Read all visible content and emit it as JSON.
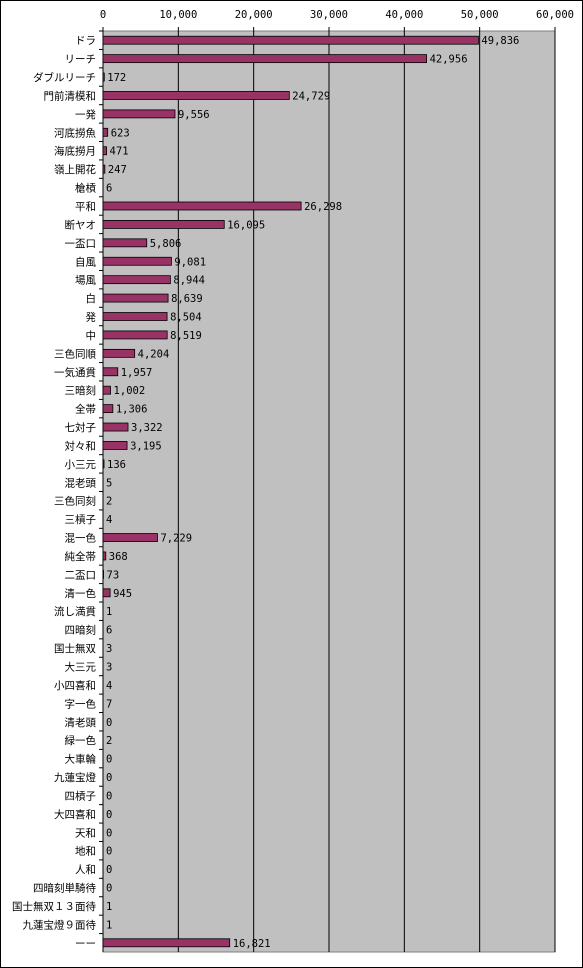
{
  "chart_data": {
    "type": "bar",
    "orientation": "horizontal",
    "categories": [
      "ドラ",
      "リーチ",
      "ダブルリーチ",
      "門前清模和",
      "一発",
      "河底撈魚",
      "海底撈月",
      "嶺上開花",
      "槍槓",
      "平和",
      "断ヤオ",
      "一盃口",
      "自風",
      "場風",
      "白",
      "発",
      "中",
      "三色同順",
      "一気通貫",
      "三暗刻",
      "全帯",
      "七対子",
      "対々和",
      "小三元",
      "混老頭",
      "三色同刻",
      "三槓子",
      "混一色",
      "純全帯",
      "二盃口",
      "清一色",
      "流し満貫",
      "四暗刻",
      "国士無双",
      "大三元",
      "小四喜和",
      "字一色",
      "清老頭",
      "緑一色",
      "大車輪",
      "九蓮宝燈",
      "四槓子",
      "大四喜和",
      "天和",
      "地和",
      "人和",
      "四暗刻単騎待",
      "国士無双１３面待",
      "九蓮宝燈９面待",
      "ーー"
    ],
    "values": [
      49836,
      42956,
      172,
      24729,
      9556,
      623,
      471,
      247,
      6,
      26298,
      16095,
      5806,
      9081,
      8944,
      8639,
      8504,
      8519,
      4204,
      1957,
      1002,
      1306,
      3322,
      3195,
      136,
      5,
      2,
      4,
      7229,
      368,
      73,
      945,
      1,
      6,
      3,
      3,
      4,
      7,
      0,
      2,
      0,
      0,
      0,
      0,
      0,
      0,
      0,
      0,
      1,
      1,
      16821
    ],
    "value_labels": [
      "49,836",
      "42,956",
      "172",
      "24,729",
      "9,556",
      "623",
      "471",
      "247",
      "6",
      "26,298",
      "16,095",
      "5,806",
      "9,081",
      "8,944",
      "8,639",
      "8,504",
      "8,519",
      "4,204",
      "1,957",
      "1,002",
      "1,306",
      "3,322",
      "3,195",
      "136",
      "5",
      "2",
      "4",
      "7,229",
      "368",
      "73",
      "945",
      "1",
      "6",
      "3",
      "3",
      "4",
      "7",
      "0",
      "2",
      "0",
      "0",
      "0",
      "0",
      "0",
      "0",
      "0",
      "0",
      "1",
      "1",
      "16,821"
    ],
    "color": "#993366",
    "xlim": [
      0,
      60000
    ],
    "xticks": [
      0,
      {
        "value": 10000,
        "label": "10,000"
      },
      {
        "value": 20000,
        "label": "20,000"
      },
      {
        "value": 30000,
        "label": "30,000"
      },
      {
        "value": 40000,
        "label": "40,000"
      },
      {
        "value": 50000,
        "label": "50,000"
      },
      {
        "value": 60000,
        "label": "60,000"
      }
    ],
    "grid": true
  }
}
